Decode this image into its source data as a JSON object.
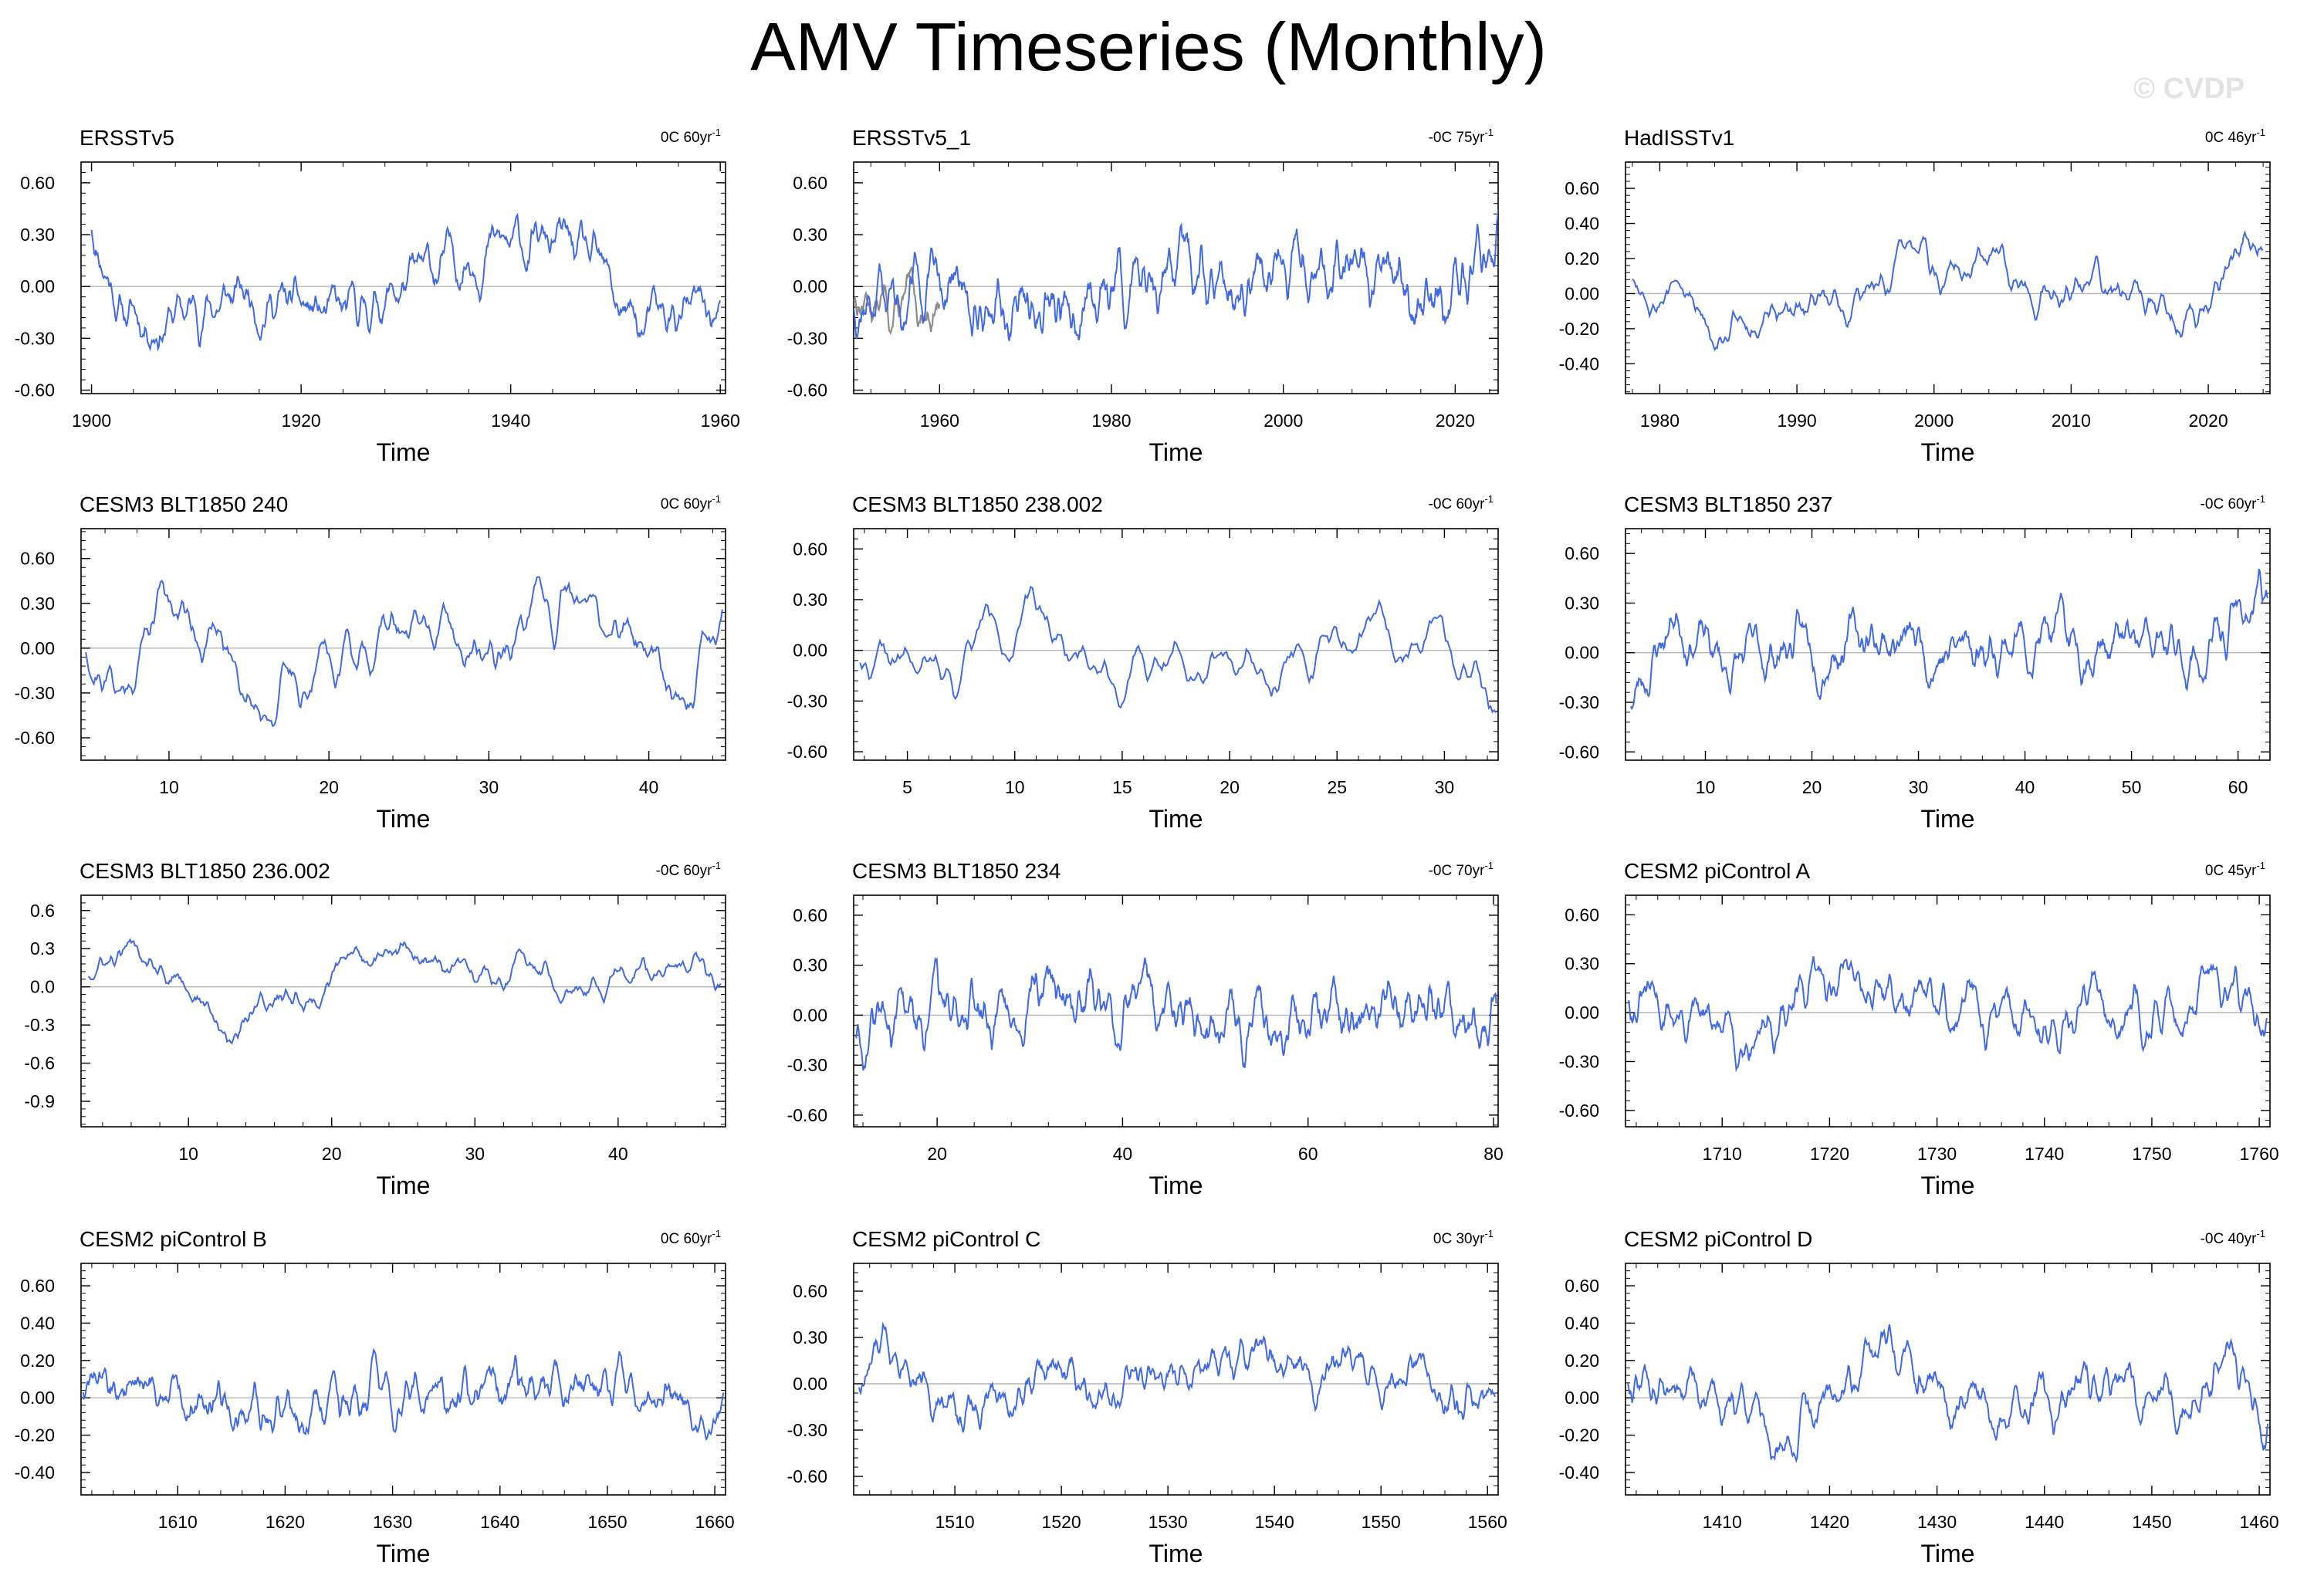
{
  "title": "AMV Timeseries (Monthly)",
  "watermark": "© CVDP",
  "colors": {
    "series": "#4169e1",
    "observed_spread": "#8c8c8c",
    "zero_line": "#b4b4b4",
    "axes": "#000000"
  },
  "chart_data": [
    {
      "type": "line",
      "title": "ERSSTv5",
      "trend": "0C 60yr",
      "trend_unit": "-1",
      "xlabel": "Time",
      "xlim": [
        1899,
        1960.5
      ],
      "ylim": [
        -0.62,
        0.72
      ],
      "xticks": [
        1900,
        1920,
        1940,
        1960
      ],
      "xtick_labels": [
        "1900",
        "1920",
        "1940",
        "1960"
      ],
      "yticks": [
        0.6,
        0.3,
        0,
        -0.3,
        -0.6
      ],
      "ytick_labels": [
        "0.60",
        "0.30",
        "0.00",
        "-0.30",
        "-0.60"
      ],
      "series": [
        {
          "name": "ERSSTv5",
          "x0": 1900,
          "x1": 1960,
          "seed": 11,
          "amp": 0.18,
          "anchors": [
            [
              0,
              0.35
            ],
            [
              0.05,
              -0.15
            ],
            [
              0.1,
              -0.2
            ],
            [
              0.25,
              -0.05
            ],
            [
              0.4,
              -0.2
            ],
            [
              0.5,
              0.0
            ],
            [
              0.6,
              0.2
            ],
            [
              0.75,
              0.25
            ],
            [
              0.8,
              0.1
            ],
            [
              0.87,
              -0.25
            ],
            [
              0.95,
              -0.15
            ],
            [
              1,
              -0.15
            ]
          ]
        }
      ]
    },
    {
      "type": "line",
      "title": "ERSSTv5_1",
      "trend": "-0C 75yr",
      "trend_unit": "-1",
      "xlabel": "Time",
      "xlim": [
        1950,
        2025
      ],
      "ylim": [
        -0.62,
        0.72
      ],
      "xticks": [
        1960,
        1980,
        2000,
        2020
      ],
      "xtick_labels": [
        "1960",
        "1980",
        "2000",
        "2020"
      ],
      "yticks": [
        0.6,
        0.3,
        0,
        -0.3,
        -0.6
      ],
      "ytick_labels": [
        "0.60",
        "0.30",
        "0.00",
        "-0.30",
        "-0.60"
      ],
      "series": [
        {
          "name": "ERSSTv5_1",
          "x0": 1950,
          "x1": 2025,
          "seed": 12,
          "amp": 0.18,
          "anchors": [
            [
              0,
              -0.1
            ],
            [
              0.15,
              0.0
            ],
            [
              0.3,
              -0.2
            ],
            [
              0.45,
              0.1
            ],
            [
              0.55,
              0.05
            ],
            [
              0.7,
              0.15
            ],
            [
              0.85,
              0.0
            ],
            [
              0.92,
              -0.15
            ],
            [
              0.97,
              0.1
            ],
            [
              1,
              0.3
            ]
          ]
        }
      ],
      "spread": {
        "name": "ensemble",
        "x0": 1950,
        "x1": 1960,
        "seed": 13,
        "amp": 0.15,
        "anchors": [
          [
            0,
            -0.05
          ],
          [
            0.5,
            -0.15
          ],
          [
            1,
            -0.1
          ]
        ]
      }
    },
    {
      "type": "line",
      "title": "HadISSTv1",
      "trend": "0C 46yr",
      "trend_unit": "-1",
      "xlabel": "Time",
      "xlim": [
        1977.5,
        2024.5
      ],
      "ylim": [
        -0.57,
        0.75
      ],
      "xticks": [
        1980,
        1990,
        2000,
        2010,
        2020
      ],
      "xtick_labels": [
        "1980",
        "1990",
        "2000",
        "2010",
        "2020"
      ],
      "yticks": [
        0.6,
        0.4,
        0.2,
        0,
        -0.2,
        -0.4
      ],
      "ytick_labels": [
        "0.60",
        "0.40",
        "0.20",
        "0.00",
        "-0.20",
        "-0.40"
      ],
      "series": [
        {
          "name": "HadISSTv1",
          "x0": 1978,
          "x1": 2024,
          "seed": 14,
          "amp": 0.14,
          "anchors": [
            [
              0,
              0.1
            ],
            [
              0.15,
              -0.15
            ],
            [
              0.3,
              -0.1
            ],
            [
              0.45,
              0.15
            ],
            [
              0.6,
              0.1
            ],
            [
              0.75,
              0.0
            ],
            [
              0.87,
              -0.15
            ],
            [
              0.93,
              0.0
            ],
            [
              0.97,
              0.4
            ],
            [
              1,
              0.35
            ]
          ]
        }
      ]
    },
    {
      "type": "line",
      "title": "CESM3 BLT1850 240",
      "trend": "0C 60yr",
      "trend_unit": "-1",
      "xlabel": "Time",
      "xlim": [
        4.5,
        44.8
      ],
      "ylim": [
        -0.75,
        0.8
      ],
      "xticks": [
        10,
        20,
        30,
        40
      ],
      "xtick_labels": [
        "10",
        "20",
        "30",
        "40"
      ],
      "yticks": [
        0.6,
        0.3,
        0,
        -0.3,
        -0.6
      ],
      "ytick_labels": [
        "0.60",
        "0.30",
        "0.00",
        "-0.30",
        "-0.60"
      ],
      "series": [
        {
          "name": "CESM3 BLT1850 240",
          "x0": 4.8,
          "x1": 44.6,
          "seed": 21,
          "amp": 0.2,
          "anchors": [
            [
              0,
              0.0
            ],
            [
              0.06,
              -0.3
            ],
            [
              0.12,
              0.4
            ],
            [
              0.22,
              0.0
            ],
            [
              0.28,
              -0.35
            ],
            [
              0.4,
              0.0
            ],
            [
              0.5,
              0.15
            ],
            [
              0.62,
              -0.05
            ],
            [
              0.75,
              0.25
            ],
            [
              0.88,
              0.05
            ],
            [
              0.95,
              -0.3
            ],
            [
              1,
              0.2
            ]
          ]
        }
      ]
    },
    {
      "type": "line",
      "title": "CESM3 BLT1850 238.002",
      "trend": "-0C 60yr",
      "trend_unit": "-1",
      "xlabel": "Time",
      "xlim": [
        2.5,
        32.5
      ],
      "ylim": [
        -0.65,
        0.72
      ],
      "xticks": [
        5,
        10,
        15,
        20,
        25,
        30
      ],
      "xtick_labels": [
        "5",
        "10",
        "15",
        "20",
        "25",
        "30"
      ],
      "yticks": [
        0.6,
        0.3,
        0,
        -0.3,
        -0.6
      ],
      "ytick_labels": [
        "0.60",
        "0.30",
        "0.00",
        "-0.30",
        "-0.60"
      ],
      "series": [
        {
          "name": "CESM3 BLT1850 238.002",
          "x0": 2.8,
          "x1": 32.4,
          "seed": 22,
          "amp": 0.18,
          "anchors": [
            [
              0,
              -0.05
            ],
            [
              0.15,
              -0.2
            ],
            [
              0.2,
              0.2
            ],
            [
              0.3,
              0.15
            ],
            [
              0.42,
              -0.2
            ],
            [
              0.5,
              0.05
            ],
            [
              0.6,
              0.0
            ],
            [
              0.75,
              0.05
            ],
            [
              0.88,
              0.1
            ],
            [
              1,
              -0.3
            ]
          ]
        }
      ]
    },
    {
      "type": "line",
      "title": "CESM3 BLT1850 237",
      "trend": "-0C 60yr",
      "trend_unit": "-1",
      "xlabel": "Time",
      "xlim": [
        2.5,
        63
      ],
      "ylim": [
        -0.65,
        0.75
      ],
      "xticks": [
        10,
        20,
        30,
        40,
        50,
        60
      ],
      "xtick_labels": [
        "10",
        "20",
        "30",
        "40",
        "50",
        "60"
      ],
      "yticks": [
        0.6,
        0.3,
        0,
        -0.3,
        -0.6
      ],
      "ytick_labels": [
        "0.60",
        "0.30",
        "0.00",
        "-0.30",
        "-0.60"
      ],
      "series": [
        {
          "name": "CESM3 BLT1850 237",
          "x0": 3,
          "x1": 62.8,
          "seed": 23,
          "amp": 0.22,
          "anchors": [
            [
              0,
              -0.3
            ],
            [
              0.07,
              0.25
            ],
            [
              0.15,
              -0.1
            ],
            [
              0.25,
              0.05
            ],
            [
              0.38,
              0.1
            ],
            [
              0.5,
              0.0
            ],
            [
              0.6,
              0.1
            ],
            [
              0.75,
              0.05
            ],
            [
              0.9,
              -0.05
            ],
            [
              0.97,
              0.3
            ],
            [
              1,
              0.3
            ]
          ]
        }
      ]
    },
    {
      "type": "line",
      "title": "CESM3 BLT1850 236.002",
      "trend": "-0C 60yr",
      "trend_unit": "-1",
      "xlabel": "Time",
      "xlim": [
        2.5,
        47.5
      ],
      "ylim": [
        -1.1,
        0.72
      ],
      "xticks": [
        10,
        20,
        30,
        40
      ],
      "xtick_labels": [
        "10",
        "20",
        "30",
        "40"
      ],
      "yticks": [
        0.6,
        0.3,
        0,
        -0.3,
        -0.6,
        -0.9
      ],
      "ytick_labels": [
        "0.6",
        "0.3",
        "0.0",
        "-0.3",
        "-0.6",
        "-0.9"
      ],
      "series": [
        {
          "name": "CESM3 BLT1850 236.002",
          "x0": 3,
          "x1": 47.2,
          "seed": 24,
          "amp": 0.15,
          "anchors": [
            [
              0,
              0.1
            ],
            [
              0.1,
              0.3
            ],
            [
              0.18,
              -0.1
            ],
            [
              0.22,
              -0.5
            ],
            [
              0.26,
              -0.1
            ],
            [
              0.35,
              -0.1
            ],
            [
              0.43,
              0.25
            ],
            [
              0.52,
              0.25
            ],
            [
              0.6,
              0.0
            ],
            [
              0.7,
              0.2
            ],
            [
              0.78,
              0.05
            ],
            [
              0.85,
              0.15
            ],
            [
              1,
              0.0
            ]
          ]
        }
      ]
    },
    {
      "type": "line",
      "title": "CESM3 BLT1850 234",
      "trend": "-0C 70yr",
      "trend_unit": "-1",
      "xlabel": "Time",
      "xlim": [
        11,
        80.5
      ],
      "ylim": [
        -0.67,
        0.72
      ],
      "xticks": [
        20,
        40,
        60,
        80
      ],
      "xtick_labels": [
        "20",
        "40",
        "60",
        "80"
      ],
      "yticks": [
        0.6,
        0.3,
        0,
        -0.3,
        -0.6
      ],
      "ytick_labels": [
        "0.60",
        "0.30",
        "0.00",
        "-0.30",
        "-0.60"
      ],
      "series": [
        {
          "name": "CESM3 BLT1850 234",
          "x0": 11.2,
          "x1": 80.3,
          "seed": 25,
          "amp": 0.22,
          "anchors": [
            [
              0,
              -0.1
            ],
            [
              0.15,
              0.0
            ],
            [
              0.3,
              0.15
            ],
            [
              0.45,
              0.05
            ],
            [
              0.6,
              -0.15
            ],
            [
              0.75,
              0.0
            ],
            [
              0.9,
              0.1
            ],
            [
              1,
              -0.1
            ]
          ]
        }
      ]
    },
    {
      "type": "line",
      "title": "CESM2 piControl A",
      "trend": "0C 45yr",
      "trend_unit": "-1",
      "xlabel": "Time",
      "xlim": [
        1701,
        1761
      ],
      "ylim": [
        -0.7,
        0.72
      ],
      "xticks": [
        1710,
        1720,
        1730,
        1740,
        1750,
        1760
      ],
      "xtick_labels": [
        "1710",
        "1720",
        "1730",
        "1740",
        "1750",
        "1760"
      ],
      "yticks": [
        0.6,
        0.3,
        0,
        -0.3,
        -0.6
      ],
      "ytick_labels": [
        "0.60",
        "0.30",
        "0.00",
        "-0.30",
        "-0.60"
      ],
      "series": [
        {
          "name": "CESM2 piControl A",
          "x0": 1701.3,
          "x1": 1760.7,
          "seed": 31,
          "amp": 0.17,
          "anchors": [
            [
              0,
              0.1
            ],
            [
              0.15,
              -0.15
            ],
            [
              0.25,
              0.0
            ],
            [
              0.35,
              0.3
            ],
            [
              0.45,
              0.0
            ],
            [
              0.55,
              0.0
            ],
            [
              0.65,
              -0.1
            ],
            [
              0.75,
              0.1
            ],
            [
              0.85,
              0.0
            ],
            [
              0.92,
              0.3
            ],
            [
              1,
              -0.1
            ]
          ]
        }
      ]
    },
    {
      "type": "line",
      "title": "CESM2 piControl B",
      "trend": "0C 60yr",
      "trend_unit": "-1",
      "xlabel": "Time",
      "xlim": [
        1601,
        1661
      ],
      "ylim": [
        -0.52,
        0.72
      ],
      "xticks": [
        1610,
        1620,
        1630,
        1640,
        1650,
        1660
      ],
      "xtick_labels": [
        "1610",
        "1620",
        "1630",
        "1640",
        "1650",
        "1660"
      ],
      "yticks": [
        0.6,
        0.4,
        0.2,
        0,
        -0.2,
        -0.4
      ],
      "ytick_labels": [
        "0.60",
        "0.40",
        "0.20",
        "0.00",
        "-0.20",
        "-0.40"
      ],
      "series": [
        {
          "name": "CESM2 piControl B",
          "x0": 1601.2,
          "x1": 1660.8,
          "seed": 32,
          "amp": 0.16,
          "anchors": [
            [
              0,
              0.05
            ],
            [
              0.15,
              0.05
            ],
            [
              0.3,
              -0.1
            ],
            [
              0.45,
              0.0
            ],
            [
              0.6,
              0.0
            ],
            [
              0.75,
              0.1
            ],
            [
              0.9,
              0.0
            ],
            [
              1,
              0.0
            ]
          ]
        }
      ]
    },
    {
      "type": "line",
      "title": "CESM2 piControl C",
      "trend": "0C 30yr",
      "trend_unit": "-1",
      "xlabel": "Time",
      "xlim": [
        1500.5,
        1561
      ],
      "ylim": [
        -0.72,
        0.78
      ],
      "xticks": [
        1510,
        1520,
        1530,
        1540,
        1550,
        1560
      ],
      "xtick_labels": [
        "1510",
        "1520",
        "1530",
        "1540",
        "1550",
        "1560"
      ],
      "yticks": [
        0.6,
        0.3,
        0,
        -0.3,
        -0.6
      ],
      "ytick_labels": [
        "0.60",
        "0.30",
        "0.00",
        "-0.30",
        "-0.60"
      ],
      "series": [
        {
          "name": "CESM2 piControl C",
          "x0": 1501,
          "x1": 1560.7,
          "seed": 33,
          "amp": 0.18,
          "anchors": [
            [
              0,
              0.0
            ],
            [
              0.07,
              0.35
            ],
            [
              0.14,
              -0.2
            ],
            [
              0.22,
              -0.1
            ],
            [
              0.32,
              0.1
            ],
            [
              0.45,
              0.0
            ],
            [
              0.55,
              0.05
            ],
            [
              0.7,
              0.1
            ],
            [
              0.82,
              0.1
            ],
            [
              0.92,
              -0.05
            ],
            [
              1,
              -0.15
            ]
          ]
        }
      ]
    },
    {
      "type": "line",
      "title": "CESM2 piControl D",
      "trend": "-0C 40yr",
      "trend_unit": "-1",
      "xlabel": "Time",
      "xlim": [
        1401,
        1461
      ],
      "ylim": [
        -0.52,
        0.72
      ],
      "xticks": [
        1410,
        1420,
        1430,
        1440,
        1450,
        1460
      ],
      "xtick_labels": [
        "1410",
        "1420",
        "1430",
        "1440",
        "1450",
        "1460"
      ],
      "yticks": [
        0.6,
        0.4,
        0.2,
        0,
        -0.2,
        -0.4
      ],
      "ytick_labels": [
        "0.60",
        "0.40",
        "0.20",
        "0.00",
        "-0.20",
        "-0.40"
      ],
      "series": [
        {
          "name": "CESM2 piControl D",
          "x0": 1401.2,
          "x1": 1460.8,
          "seed": 34,
          "amp": 0.15,
          "anchors": [
            [
              0,
              0.1
            ],
            [
              0.12,
              0.0
            ],
            [
              0.25,
              -0.2
            ],
            [
              0.4,
              0.25
            ],
            [
              0.5,
              0.0
            ],
            [
              0.62,
              -0.05
            ],
            [
              0.75,
              0.1
            ],
            [
              0.85,
              0.0
            ],
            [
              0.93,
              0.3
            ],
            [
              1,
              -0.15
            ]
          ]
        }
      ]
    }
  ]
}
